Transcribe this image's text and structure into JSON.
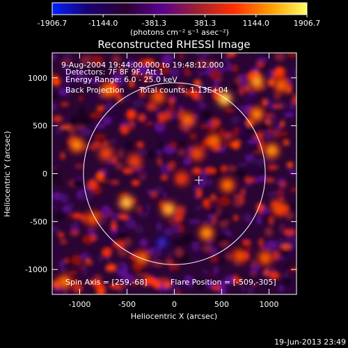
{
  "colorbar": {
    "tick_labels": [
      "-1906.7",
      "-1144.0",
      "-381.3",
      "381.3",
      "1144.0",
      "1906.7"
    ],
    "unit_label": "(photons cm⁻² s⁻¹ asec⁻²)",
    "colors": [
      "#0022ff",
      "#1a0070",
      "#2a0030",
      "#5a0090",
      "#a02030",
      "#ff3000",
      "#ff9a00",
      "#ffff60"
    ]
  },
  "annotations": {
    "time_range": "9-Aug-2004 19:44:00.000 to 19:48:12.000",
    "detectors": "Detectors: 7F 8F 9F, Att 1",
    "energy": "Energy Range: 6.0 - 25.0 keV",
    "method": "Back Projection",
    "counts": "Total counts: 1.13E+04",
    "spin_axis": "Spin Axis = [259,-68]",
    "flare_position": "Flare Position = [-509,-305]"
  },
  "footer": {
    "timestamp": "19-Jun-2013 23:49"
  },
  "chart_data": {
    "type": "heatmap",
    "title": "Reconstructed RHESSI Image",
    "xlabel": "Heliocentric X (arcsec)",
    "ylabel": "Heliocentric Y (arcsec)",
    "xlim": [
      -1290,
      1290
    ],
    "ylim": [
      -1260,
      1260
    ],
    "xticks": [
      -1000,
      -500,
      0,
      500,
      1000
    ],
    "yticks": [
      -1000,
      -500,
      0,
      500,
      1000
    ],
    "value_range": [
      -1906.7,
      1906.7
    ],
    "solar_limb": {
      "center": [
        0,
        0
      ],
      "radius_arcsec": 960
    },
    "marker_position": [
      259,
      -68
    ],
    "brightest_blobs": [
      {
        "x": 530,
        "y": 780,
        "value": 1906.7
      },
      {
        "x": -505,
        "y": -300,
        "value": 1800
      },
      {
        "x": -60,
        "y": -370,
        "value": 1700
      },
      {
        "x": 870,
        "y": 960,
        "value": 1600
      },
      {
        "x": 340,
        "y": -620,
        "value": 1500
      },
      {
        "x": -1030,
        "y": 300,
        "value": 1450
      },
      {
        "x": 1030,
        "y": 240,
        "value": 1500
      },
      {
        "x": 870,
        "y": 620,
        "value": 1400
      },
      {
        "x": -700,
        "y": 870,
        "value": 1350
      },
      {
        "x": 560,
        "y": -120,
        "value": 1300
      },
      {
        "x": 420,
        "y": 340,
        "value": 1250
      },
      {
        "x": -340,
        "y": -880,
        "value": 1200
      },
      {
        "x": 140,
        "y": 560,
        "value": 1250
      },
      {
        "x": -1160,
        "y": -1130,
        "value": 1300
      },
      {
        "x": 960,
        "y": -880,
        "value": 1150
      },
      {
        "x": -170,
        "y": 800,
        "value": 1100
      },
      {
        "x": 690,
        "y": -860,
        "value": 1050
      },
      {
        "x": -860,
        "y": -470,
        "value": 1100
      },
      {
        "x": 1130,
        "y": 920,
        "value": 1200
      },
      {
        "x": 240,
        "y": 210,
        "value": 1000
      },
      {
        "x": -420,
        "y": 130,
        "value": 950
      },
      {
        "x": 80,
        "y": -50,
        "value": 900
      },
      {
        "x": -720,
        "y": 210,
        "value": 1000
      },
      {
        "x": 1100,
        "y": -360,
        "value": 1050
      }
    ],
    "darkest_blobs": [
      {
        "x": -130,
        "y": -720,
        "value": -1906.7
      },
      {
        "x": -330,
        "y": 30,
        "value": -1100
      },
      {
        "x": 820,
        "y": 30,
        "value": -1000
      },
      {
        "x": 80,
        "y": 420,
        "value": -950
      },
      {
        "x": -620,
        "y": 620,
        "value": -900
      },
      {
        "x": 420,
        "y": -330,
        "value": -1000
      },
      {
        "x": -880,
        "y": -840,
        "value": -850
      },
      {
        "x": 1060,
        "y": 560,
        "value": -900
      }
    ]
  }
}
